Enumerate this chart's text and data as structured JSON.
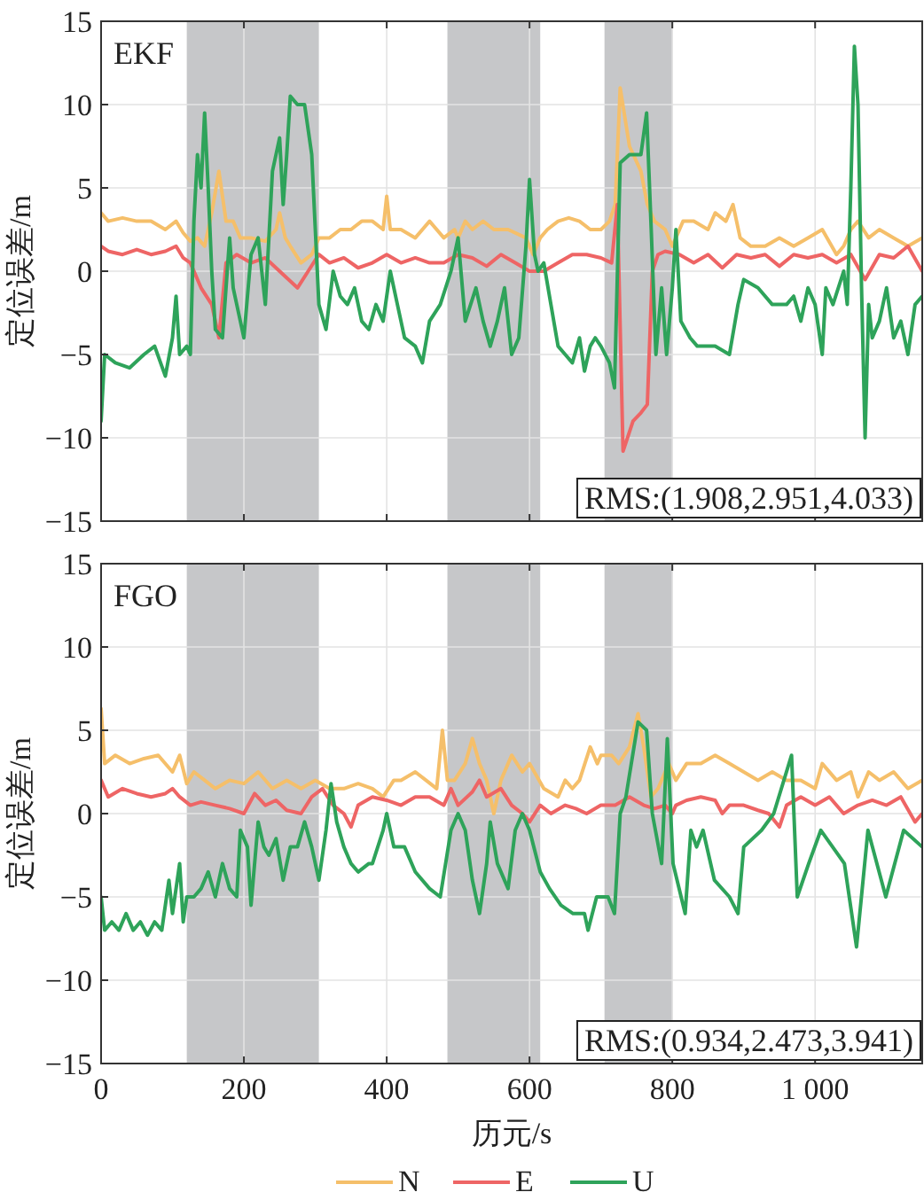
{
  "chart_data": [
    {
      "type": "line",
      "title": "EKF",
      "ylabel": "定位误差/m",
      "xlim": [
        0,
        1150
      ],
      "ylim": [
        -15,
        15
      ],
      "xticks": [
        0,
        200,
        400,
        600,
        800,
        1000
      ],
      "yticks": [
        {
          "value": -15,
          "label": "−15"
        },
        {
          "value": -10,
          "label": "−10"
        },
        {
          "value": -5,
          "label": "−5"
        },
        0,
        5,
        10,
        15
      ],
      "tick_labels": "y",
      "grid": true,
      "bands": [
        {
          "axis": "x",
          "from": 120,
          "to": 305,
          "color": "#c6c7c9"
        },
        {
          "axis": "x",
          "from": 485,
          "to": 615,
          "color": "#c6c7c9"
        },
        {
          "axis": "x",
          "from": 705,
          "to": 800,
          "color": "#c6c7c9"
        }
      ],
      "annotations": [
        "RMS:(1.908,2.951,4.033)"
      ],
      "series": [
        {
          "color": "#f5bf6a",
          "x": [
            0,
            10,
            30,
            50,
            70,
            90,
            105,
            115,
            125,
            135,
            145,
            155,
            165,
            175,
            185,
            195,
            210,
            230,
            245,
            250,
            258,
            265,
            280,
            295,
            305,
            320,
            335,
            350,
            365,
            380,
            395,
            400,
            405,
            420,
            440,
            460,
            480,
            495,
            500,
            510,
            520,
            535,
            550,
            570,
            595,
            605,
            615,
            625,
            640,
            655,
            670,
            685,
            700,
            712,
            720,
            727,
            740,
            756,
            765,
            775,
            790,
            800,
            815,
            830,
            850,
            860,
            875,
            885,
            895,
            910,
            930,
            950,
            970,
            990,
            1010,
            1030,
            1040,
            1050,
            1060,
            1075,
            1090,
            1110,
            1130,
            1150
          ],
          "values": [
            3.5,
            3,
            3.2,
            3,
            3,
            2.5,
            3,
            2.3,
            1.8,
            2,
            1.5,
            3.5,
            6,
            3,
            3,
            2,
            2,
            1.8,
            2.5,
            3.5,
            2,
            1.5,
            0.5,
            1,
            2,
            2,
            2.5,
            2.5,
            3,
            3,
            2.5,
            4.5,
            2.5,
            2.5,
            2,
            3,
            2,
            2.5,
            2,
            3,
            2.5,
            3,
            2.5,
            2.5,
            2,
            1,
            2,
            2.5,
            3,
            3.2,
            3,
            2.5,
            2.5,
            3,
            4,
            11,
            7.5,
            6,
            4,
            3,
            2.5,
            1.5,
            3,
            3,
            2.5,
            3.5,
            3,
            4,
            2,
            1.5,
            1.5,
            2,
            1.5,
            2,
            2.5,
            1,
            1.5,
            2.5,
            3,
            2,
            2.5,
            2,
            1.5,
            2
          ]
        },
        {
          "color": "#ee6565",
          "x": [
            0,
            10,
            30,
            50,
            70,
            90,
            105,
            115,
            125,
            140,
            155,
            165,
            175,
            190,
            210,
            230,
            250,
            275,
            290,
            305,
            320,
            340,
            360,
            380,
            400,
            420,
            440,
            460,
            480,
            500,
            520,
            540,
            560,
            580,
            600,
            620,
            640,
            660,
            680,
            700,
            715,
            723,
            731,
            745,
            756,
            765,
            772,
            780,
            790,
            810,
            830,
            850,
            870,
            890,
            910,
            930,
            950,
            970,
            990,
            1010,
            1030,
            1050,
            1070,
            1090,
            1110,
            1130,
            1150
          ],
          "values": [
            1.5,
            1.2,
            1,
            1.3,
            1,
            1.2,
            1.5,
            0.8,
            0.5,
            -1,
            -2,
            -4,
            0.5,
            1,
            0.5,
            0.8,
            0,
            -1,
            0,
            1,
            0.5,
            0.8,
            0.2,
            0.5,
            1,
            0.5,
            0.8,
            0.5,
            0.5,
            1,
            0.8,
            0.3,
            1,
            0.5,
            0,
            0,
            0.5,
            1,
            1,
            0.8,
            0.5,
            4,
            -10.8,
            -9,
            -8.5,
            -8,
            0,
            1,
            1.2,
            1,
            0.5,
            1,
            0.2,
            1,
            0.8,
            1,
            0.3,
            1,
            0.8,
            1,
            0.5,
            1,
            -0.5,
            1,
            0.8,
            1.5,
            0
          ]
        },
        {
          "color": "#2ea35a",
          "x": [
            0,
            5,
            20,
            40,
            60,
            75,
            90,
            100,
            105,
            110,
            120,
            125,
            130,
            135,
            140,
            145,
            150,
            155,
            160,
            170,
            180,
            185,
            190,
            200,
            210,
            220,
            230,
            240,
            250,
            255,
            260,
            265,
            275,
            285,
            295,
            305,
            315,
            325,
            335,
            345,
            355,
            365,
            375,
            385,
            395,
            405,
            415,
            425,
            440,
            450,
            460,
            475,
            490,
            500,
            510,
            525,
            535,
            545,
            555,
            565,
            575,
            585,
            595,
            600,
            607,
            612,
            620,
            630,
            640,
            650,
            660,
            670,
            677,
            685,
            692,
            700,
            712,
            719,
            727,
            740,
            756,
            764,
            770,
            777,
            785,
            792,
            800,
            805,
            812,
            825,
            835,
            860,
            880,
            892,
            900,
            920,
            940,
            960,
            970,
            980,
            990,
            1000,
            1010,
            1015,
            1025,
            1040,
            1045,
            1050,
            1055,
            1060,
            1065,
            1070,
            1075,
            1080,
            1090,
            1100,
            1110,
            1120,
            1130,
            1140,
            1150
          ],
          "values": [
            -9,
            -5,
            -5.5,
            -5.8,
            -5,
            -4.5,
            -6.3,
            -4,
            -1.5,
            -5,
            -4.5,
            -5,
            3,
            7,
            5,
            9.5,
            5,
            0,
            -3.5,
            -4,
            2,
            -1,
            -2,
            -4,
            1,
            2,
            -2,
            6,
            8,
            4,
            7,
            10.5,
            10,
            10,
            7,
            -2,
            -3.5,
            0,
            -1.5,
            -2,
            -1,
            -3,
            -3.5,
            -2,
            -3,
            0,
            -2,
            -4,
            -4.5,
            -5.5,
            -3,
            -2,
            0,
            2,
            -3,
            -1,
            -3,
            -4.5,
            -3,
            -1,
            -5,
            -4,
            1.5,
            5.5,
            1,
            0,
            0.5,
            -2,
            -4.5,
            -5,
            -5.5,
            -4,
            -6,
            -4.5,
            -4,
            -4.5,
            -5.5,
            -7,
            6.5,
            7,
            7,
            9.5,
            3,
            -5,
            -1,
            -5,
            -1,
            2.5,
            -3,
            -4,
            -4.5,
            -4.5,
            -5,
            -2,
            -0.5,
            -1,
            -2,
            -2,
            -1.5,
            -3,
            -1,
            -2,
            -5,
            -1,
            -2,
            0,
            -2,
            5,
            13.5,
            10,
            -1,
            -10,
            -2,
            -4,
            -3,
            -1,
            -4,
            -3,
            -5,
            -2,
            -1.5
          ]
        }
      ]
    },
    {
      "type": "line",
      "title": "FGO",
      "ylabel": "定位误差/m",
      "xlabel": "历元/s",
      "xlim": [
        0,
        1150
      ],
      "ylim": [
        -15,
        15
      ],
      "xticks": [
        0,
        200,
        400,
        600,
        800,
        {
          "value": 1000,
          "label": "1 000"
        }
      ],
      "yticks": [
        {
          "value": -15,
          "label": "−15"
        },
        {
          "value": -10,
          "label": "−10"
        },
        {
          "value": -5,
          "label": "−5"
        },
        0,
        5,
        10,
        15
      ],
      "grid": true,
      "legend": "bottom",
      "bands": [
        {
          "axis": "x",
          "from": 120,
          "to": 305,
          "color": "#c6c7c9"
        },
        {
          "axis": "x",
          "from": 485,
          "to": 615,
          "color": "#c6c7c9"
        },
        {
          "axis": "x",
          "from": 705,
          "to": 800,
          "color": "#c6c7c9"
        }
      ],
      "annotations": [
        "RMS:(0.934,2.473,3.941)"
      ],
      "series": [
        {
          "name": "N",
          "color": "#f5bf6a",
          "x": [
            0,
            5,
            20,
            40,
            60,
            80,
            100,
            110,
            120,
            130,
            145,
            160,
            180,
            200,
            220,
            240,
            260,
            280,
            300,
            320,
            340,
            360,
            380,
            395,
            410,
            420,
            440,
            455,
            470,
            478,
            485,
            495,
            510,
            520,
            530,
            540,
            550,
            560,
            575,
            590,
            600,
            620,
            640,
            650,
            660,
            670,
            685,
            695,
            700,
            715,
            725,
            740,
            752,
            760,
            770,
            780,
            795,
            805,
            820,
            840,
            860,
            880,
            900,
            920,
            940,
            960,
            980,
            1000,
            1010,
            1030,
            1050,
            1060,
            1075,
            1090,
            1110,
            1130,
            1150
          ],
          "values": [
            6.3,
            3,
            3.5,
            3,
            3.3,
            3.5,
            2.5,
            3.5,
            1.8,
            2.5,
            2,
            1.5,
            2,
            1.8,
            2.5,
            1.5,
            2,
            1.5,
            2,
            1.5,
            1.5,
            1.8,
            1.5,
            1,
            2,
            2,
            2.5,
            2,
            1.5,
            5,
            2,
            2,
            3,
            4.5,
            3,
            2,
            0,
            2,
            3.5,
            2.5,
            3,
            1.5,
            1,
            2,
            1.5,
            2,
            4,
            3,
            3.5,
            3.5,
            3,
            4,
            6,
            4,
            1,
            1.5,
            3,
            2,
            3,
            3,
            3.5,
            3,
            2.5,
            2,
            2.5,
            2,
            2,
            1.5,
            3,
            2,
            2.5,
            1,
            2.5,
            2,
            2.5,
            1.5,
            2
          ]
        },
        {
          "name": "E",
          "color": "#ee6565",
          "x": [
            0,
            10,
            30,
            50,
            70,
            90,
            100,
            110,
            125,
            140,
            160,
            180,
            200,
            215,
            230,
            245,
            260,
            280,
            295,
            310,
            325,
            340,
            350,
            360,
            380,
            400,
            420,
            440,
            460,
            480,
            490,
            500,
            520,
            530,
            540,
            560,
            575,
            590,
            600,
            615,
            630,
            650,
            665,
            680,
            700,
            720,
            740,
            760,
            775,
            790,
            800,
            805,
            820,
            840,
            860,
            870,
            880,
            900,
            920,
            935,
            950,
            960,
            980,
            1000,
            1020,
            1040,
            1060,
            1080,
            1100,
            1120,
            1140,
            1150
          ],
          "values": [
            2,
            1,
            1.5,
            1.2,
            1,
            1.2,
            1.5,
            1,
            0.5,
            0.7,
            0.5,
            0.3,
            0,
            1.2,
            0.5,
            0.8,
            0.2,
            0,
            1,
            1.5,
            0.5,
            0,
            -0.8,
            0.5,
            1,
            0.8,
            0.5,
            1,
            1,
            0.5,
            1.5,
            0.5,
            1.3,
            2,
            1,
            1.5,
            0.5,
            0,
            -0.5,
            0.5,
            0,
            0.5,
            0.3,
            0,
            0.5,
            0.5,
            1,
            0.5,
            0.3,
            0.5,
            0,
            0.5,
            0.8,
            1,
            0.8,
            0,
            0.5,
            0.5,
            0.2,
            0,
            -0.8,
            0.5,
            1,
            0.5,
            1,
            0,
            0.5,
            0.8,
            0.5,
            1,
            -0.5,
            0
          ]
        },
        {
          "name": "U",
          "color": "#2ea35a",
          "x": [
            0,
            5,
            15,
            25,
            35,
            45,
            55,
            65,
            75,
            85,
            95,
            100,
            110,
            115,
            120,
            130,
            140,
            150,
            160,
            170,
            180,
            190,
            195,
            205,
            210,
            220,
            228,
            235,
            245,
            255,
            265,
            275,
            285,
            295,
            305,
            315,
            322,
            330,
            340,
            350,
            360,
            375,
            380,
            395,
            400,
            410,
            425,
            440,
            460,
            475,
            490,
            500,
            510,
            520,
            530,
            540,
            545,
            555,
            570,
            580,
            590,
            600,
            615,
            628,
            644,
            661,
            677,
            682,
            694,
            710,
            719,
            727,
            735,
            752,
            764,
            772,
            785,
            793,
            801,
            818,
            826,
            834,
            843,
            859,
            880,
            892,
            900,
            925,
            942,
            967,
            975,
            991,
            1008,
            1041,
            1058,
            1074,
            1099,
            1124,
            1150
          ],
          "values": [
            -5,
            -7,
            -6.5,
            -7,
            -6,
            -7,
            -6.5,
            -7.3,
            -6.5,
            -7,
            -4,
            -6,
            -3,
            -6.5,
            -5,
            -5,
            -4.5,
            -3.5,
            -5,
            -3,
            -4.5,
            -5,
            -1,
            -2,
            -5.5,
            -0.5,
            -2,
            -2.5,
            -1.5,
            -4,
            -2,
            -2,
            -0.5,
            -2,
            -4,
            -1,
            1.8,
            -0.5,
            -2,
            -3,
            -3.5,
            -3,
            -3,
            -1,
            0,
            -2,
            -2,
            -3.5,
            -4.5,
            -5,
            -1,
            0,
            -1,
            -4,
            -6,
            -3,
            -0.5,
            -3,
            -4.5,
            -1,
            0,
            -1,
            -3.5,
            -4.5,
            -5.5,
            -6,
            -6,
            -7,
            -5,
            -5,
            -6,
            0,
            1,
            5.5,
            5,
            0,
            -3,
            4.5,
            -3,
            -6,
            -1,
            -2,
            -1,
            -4,
            -5,
            -6,
            -2,
            -1,
            0,
            3.5,
            -5,
            -3,
            -1,
            -3,
            -8,
            -1,
            -5,
            -1,
            -2
          ]
        }
      ]
    }
  ]
}
